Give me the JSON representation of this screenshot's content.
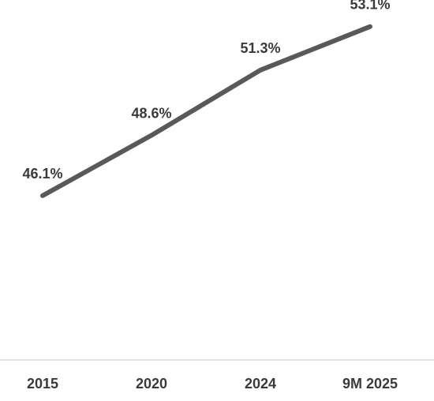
{
  "chart_data": {
    "type": "line",
    "categories": [
      "2015",
      "2020",
      "2024",
      "9M 2025"
    ],
    "series": [
      {
        "values": [
          46.1,
          48.6,
          51.3,
          53.1
        ],
        "labels": [
          "46.1%",
          "48.6%",
          "51.3%",
          "53.1%"
        ],
        "color": "#595959"
      }
    ],
    "title": "",
    "xlabel": "",
    "ylabel": "",
    "ylim": [
      39.3,
      54.2
    ],
    "grid": false,
    "legend": "none",
    "axis_color": "#d9d9d9"
  }
}
